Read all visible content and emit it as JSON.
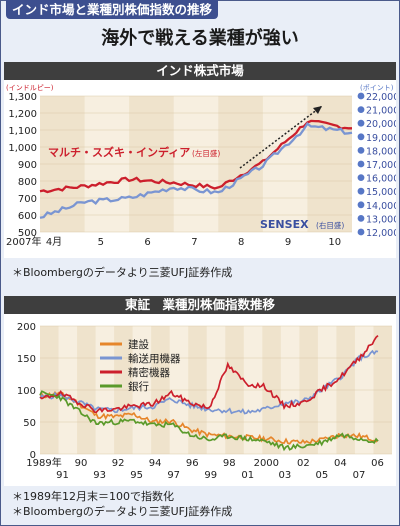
{
  "header": {
    "title": "インド市場と業種別株価指数の推移",
    "subtitle": "海外で戦える業種が強い"
  },
  "colors": {
    "header_bg": "#3d4f8f",
    "band_bg": "#3e3e3e",
    "frame_bg": "#e9eef7",
    "maruti_line": "#cc1f2c",
    "sensex_line": "#7a95d2",
    "right_axis_dot": "#5777c6"
  },
  "chart1": {
    "band_title": "インド株式市場",
    "left_axis_unit": "(インドルピー)",
    "right_axis_unit": "(ポイント)",
    "year_label": "2007年",
    "note": "＊Bloombergのデータより三菱UFJ証券作成",
    "maruti_label": "マルチ・スズキ・インディア",
    "maruti_axis_note": "(左目盛)",
    "sensex_label": "SENSEX",
    "sensex_axis_note": "(右目盛)",
    "left_ticks": [
      "1,300",
      "1,200",
      "1,100",
      "1,000",
      "900",
      "800",
      "700",
      "600",
      "500"
    ],
    "right_ticks": [
      "22,000",
      "21,000",
      "20,000",
      "19,000",
      "18,000",
      "17,000",
      "16,000",
      "15,000",
      "14,000",
      "13,000",
      "12,000"
    ],
    "x_ticks": [
      "4月",
      "5",
      "6",
      "7",
      "8",
      "9",
      "10"
    ]
  },
  "chart2": {
    "band_title": "東証　業種別株価指数推移",
    "y_ticks": [
      "200",
      "150",
      "100",
      "50",
      "0"
    ],
    "x_ticks": [
      "1989年",
      "90",
      "92",
      "94",
      "96",
      "98",
      "2000",
      "02",
      "04",
      "06"
    ],
    "x_ticks_alt": [
      "91",
      "93",
      "95",
      "97",
      "99",
      "01",
      "03",
      "05",
      "07"
    ],
    "note1": "＊1989年12月末＝100で指数化",
    "note2": "＊Bloombergのデータより三菱UFJ証券作成",
    "legend": [
      {
        "label": "建設",
        "color": "#e6862b"
      },
      {
        "label": "輸送用機器",
        "color": "#7a95d2"
      },
      {
        "label": "精密機器",
        "color": "#cc1f2c"
      },
      {
        "label": "銀行",
        "color": "#5a9a2a"
      }
    ]
  },
  "chart_data": [
    {
      "type": "line",
      "title": "インド株式市場",
      "x": [
        "2007-04",
        "2007-05",
        "2007-06",
        "2007-07",
        "2007-08",
        "2007-09",
        "2007-10",
        "2007-11"
      ],
      "series": [
        {
          "name": "マルチ・スズキ・インディア",
          "axis": "left",
          "values": [
            740,
            770,
            810,
            790,
            760,
            910,
            1150,
            1110
          ]
        },
        {
          "name": "SENSEX",
          "axis": "right",
          "values": [
            13100,
            14200,
            14500,
            15300,
            14900,
            16900,
            19800,
            19300
          ]
        }
      ],
      "ylim_left": [
        500,
        1300
      ],
      "ylim_right": [
        12000,
        22000
      ]
    },
    {
      "type": "line",
      "title": "東証　業種別株価指数推移",
      "x": [
        1989,
        1990,
        1991,
        1992,
        1993,
        1994,
        1995,
        1996,
        1997,
        1998,
        1999,
        2000,
        2001,
        2002,
        2003,
        2004,
        2005,
        2006,
        2007
      ],
      "series": [
        {
          "name": "建設",
          "values": [
            90,
            95,
            80,
            60,
            58,
            62,
            50,
            52,
            38,
            30,
            28,
            26,
            24,
            20,
            18,
            22,
            30,
            28,
            22
          ]
        },
        {
          "name": "輸送用機器",
          "values": [
            88,
            92,
            82,
            70,
            68,
            72,
            74,
            86,
            76,
            70,
            68,
            65,
            70,
            80,
            82,
            100,
            120,
            150,
            160
          ]
        },
        {
          "name": "精密機器",
          "values": [
            85,
            95,
            82,
            68,
            70,
            75,
            78,
            95,
            80,
            72,
            138,
            110,
            105,
            75,
            80,
            100,
            120,
            150,
            185
          ]
        },
        {
          "name": "銀行",
          "values": [
            95,
            90,
            68,
            48,
            50,
            52,
            45,
            46,
            30,
            22,
            28,
            24,
            20,
            10,
            12,
            18,
            30,
            25,
            20
          ]
        }
      ],
      "ylim": [
        0,
        200
      ]
    }
  ]
}
